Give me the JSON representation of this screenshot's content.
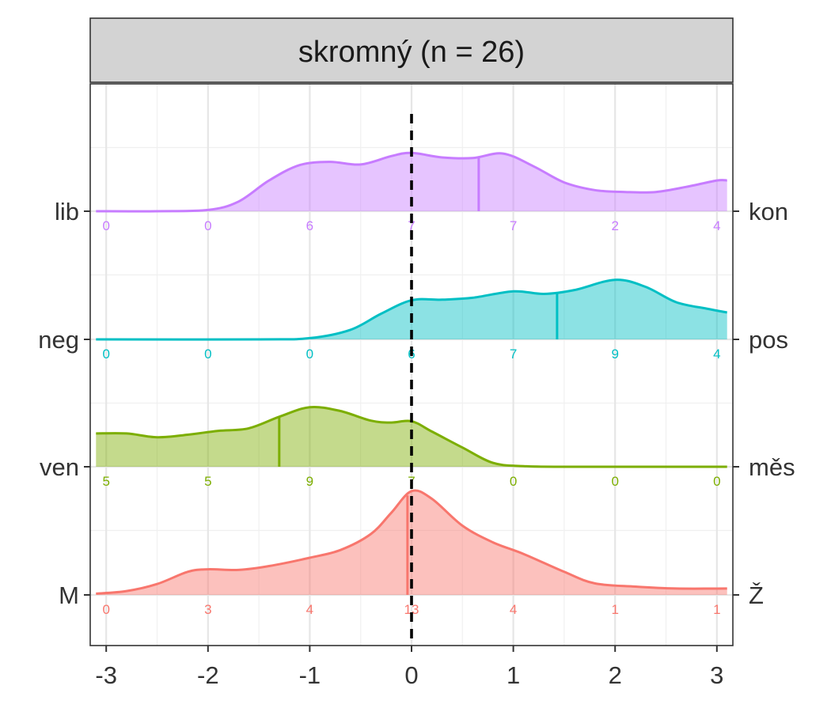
{
  "chart_data": {
    "type": "area",
    "title": "skromný (n = 26)",
    "xlabel": "",
    "ylabel": "",
    "xlim": [
      -3.1,
      3.1
    ],
    "x_ticks": [
      "-3",
      "-2",
      "-1",
      "0",
      "1",
      "2",
      "3"
    ],
    "count_positions": [
      -3,
      -2,
      -1,
      0,
      1,
      2,
      3
    ],
    "reference_line": 0,
    "grid": true,
    "series": [
      {
        "left_label": "M",
        "right_label": "Ž",
        "color": "#F8766D",
        "counts": [
          "0",
          "3",
          "4",
          "13",
          "4",
          "1",
          "1"
        ],
        "mean": -0.04,
        "density": [
          [
            -3.1,
            0.02
          ],
          [
            -2.8,
            0.06
          ],
          [
            -2.5,
            0.17
          ],
          [
            -2.2,
            0.36
          ],
          [
            -2.0,
            0.4
          ],
          [
            -1.7,
            0.39
          ],
          [
            -1.4,
            0.45
          ],
          [
            -1.0,
            0.58
          ],
          [
            -0.7,
            0.7
          ],
          [
            -0.4,
            0.95
          ],
          [
            -0.2,
            1.28
          ],
          [
            0.0,
            1.62
          ],
          [
            0.2,
            1.5
          ],
          [
            0.5,
            1.08
          ],
          [
            0.8,
            0.82
          ],
          [
            1.1,
            0.64
          ],
          [
            1.5,
            0.36
          ],
          [
            1.8,
            0.18
          ],
          [
            2.2,
            0.13
          ],
          [
            2.6,
            0.1
          ],
          [
            3.1,
            0.1
          ]
        ]
      },
      {
        "left_label": "ven",
        "right_label": "měs",
        "color": "#7CAE00",
        "counts": [
          "5",
          "5",
          "9",
          "7",
          "0",
          "0",
          "0"
        ],
        "mean": -1.3,
        "density": [
          [
            -3.1,
            0.52
          ],
          [
            -2.8,
            0.52
          ],
          [
            -2.5,
            0.46
          ],
          [
            -2.2,
            0.5
          ],
          [
            -1.9,
            0.56
          ],
          [
            -1.6,
            0.6
          ],
          [
            -1.3,
            0.78
          ],
          [
            -1.0,
            0.93
          ],
          [
            -0.7,
            0.87
          ],
          [
            -0.4,
            0.72
          ],
          [
            -0.2,
            0.69
          ],
          [
            0.0,
            0.71
          ],
          [
            0.2,
            0.55
          ],
          [
            0.5,
            0.3
          ],
          [
            0.8,
            0.06
          ],
          [
            1.1,
            0.01
          ],
          [
            1.5,
            0.0
          ],
          [
            3.1,
            0.0
          ]
        ]
      },
      {
        "left_label": "neg",
        "right_label": "pos",
        "color": "#00BFC4",
        "counts": [
          "0",
          "0",
          "0",
          "6",
          "7",
          "9",
          "4"
        ],
        "mean": 1.43,
        "density": [
          [
            -3.1,
            0.0
          ],
          [
            -1.5,
            0.0
          ],
          [
            -1.0,
            0.02
          ],
          [
            -0.6,
            0.15
          ],
          [
            -0.3,
            0.4
          ],
          [
            0.0,
            0.61
          ],
          [
            0.3,
            0.62
          ],
          [
            0.6,
            0.65
          ],
          [
            1.0,
            0.75
          ],
          [
            1.3,
            0.71
          ],
          [
            1.6,
            0.77
          ],
          [
            2.0,
            0.93
          ],
          [
            2.3,
            0.82
          ],
          [
            2.6,
            0.58
          ],
          [
            2.9,
            0.48
          ],
          [
            3.1,
            0.42
          ]
        ]
      },
      {
        "left_label": "lib",
        "right_label": "kon",
        "color": "#C77CFF",
        "counts": [
          "0",
          "0",
          "6",
          "7",
          "7",
          "2",
          "4"
        ],
        "mean": 0.66,
        "density": [
          [
            -3.1,
            0.0
          ],
          [
            -2.5,
            0.0
          ],
          [
            -2.0,
            0.02
          ],
          [
            -1.7,
            0.15
          ],
          [
            -1.4,
            0.48
          ],
          [
            -1.1,
            0.72
          ],
          [
            -0.8,
            0.77
          ],
          [
            -0.5,
            0.73
          ],
          [
            -0.2,
            0.86
          ],
          [
            0.0,
            0.91
          ],
          [
            0.3,
            0.84
          ],
          [
            0.6,
            0.83
          ],
          [
            0.9,
            0.9
          ],
          [
            1.2,
            0.7
          ],
          [
            1.5,
            0.45
          ],
          [
            1.8,
            0.33
          ],
          [
            2.1,
            0.3
          ],
          [
            2.4,
            0.3
          ],
          [
            2.7,
            0.38
          ],
          [
            3.0,
            0.48
          ],
          [
            3.1,
            0.48
          ]
        ]
      }
    ]
  }
}
